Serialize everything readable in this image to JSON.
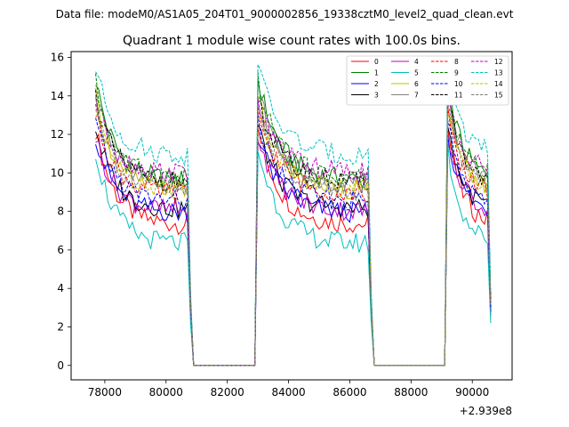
{
  "chart_data": {
    "type": "line",
    "suptitle": "Data file: modeM0/AS1A05_204T01_9000002856_19338cztM0_level2_quad_clean.evt",
    "title": "Quadrant 1 module wise count rates with 100.0s bins.",
    "xlabel": "",
    "ylabel": "",
    "x_offset_label": "+2.939e8",
    "xlim": [
      76900,
      91300
    ],
    "ylim": [
      -0.75,
      16.3
    ],
    "xticks": [
      78000,
      80000,
      82000,
      84000,
      86000,
      88000,
      90000
    ],
    "yticks": [
      0,
      2,
      4,
      6,
      8,
      10,
      12,
      14,
      16
    ],
    "x_start": 77700,
    "bin_seconds": 100,
    "segments": [
      {
        "start": 77700,
        "end": 80700,
        "decay": 0.165
      },
      {
        "start": 83000,
        "end": 86600,
        "decay": 0.14
      },
      {
        "start": 89200,
        "end": 90500,
        "decay": 0.22
      }
    ],
    "gaps": [
      {
        "from": 80900,
        "to": 82900
      },
      {
        "from": 86800,
        "to": 89100
      }
    ],
    "series": [
      {
        "name": "0",
        "color": "#ff0000",
        "dash": "solid",
        "peak": 12.3,
        "level": 7.3
      },
      {
        "name": "1",
        "color": "#008000",
        "dash": "solid",
        "peak": 14.9,
        "level": 9.6
      },
      {
        "name": "2",
        "color": "#0000ff",
        "dash": "solid",
        "peak": 12.0,
        "level": 7.9
      },
      {
        "name": "3",
        "color": "#000000",
        "dash": "solid",
        "peak": 12.4,
        "level": 8.1
      },
      {
        "name": "4",
        "color": "#bf00bf",
        "dash": "solid",
        "peak": 11.9,
        "level": 8.0
      },
      {
        "name": "5",
        "color": "#00bfbf",
        "dash": "solid",
        "peak": 11.2,
        "level": 6.3
      },
      {
        "name": "6",
        "color": "#bfbf00",
        "dash": "solid",
        "peak": 13.9,
        "level": 9.1
      },
      {
        "name": "7",
        "color": "#808080",
        "dash": "solid",
        "peak": 14.3,
        "level": 9.4
      },
      {
        "name": "8",
        "color": "#ff0000",
        "dash": "dashed",
        "peak": 13.1,
        "level": 8.9
      },
      {
        "name": "9",
        "color": "#008000",
        "dash": "dashed",
        "peak": 14.7,
        "level": 9.7
      },
      {
        "name": "10",
        "color": "#0000ff",
        "dash": "dashed",
        "peak": 12.6,
        "level": 8.5
      },
      {
        "name": "11",
        "color": "#000000",
        "dash": "dashed",
        "peak": 14.0,
        "level": 9.5
      },
      {
        "name": "12",
        "color": "#bf00bf",
        "dash": "dashed",
        "peak": 13.6,
        "level": 10.0
      },
      {
        "name": "13",
        "color": "#00bfbf",
        "dash": "dashed",
        "peak": 15.5,
        "level": 10.9
      },
      {
        "name": "14",
        "color": "#bfbf00",
        "dash": "dashed",
        "peak": 13.3,
        "level": 9.2
      },
      {
        "name": "15",
        "color": "#808080",
        "dash": "dashed",
        "peak": 13.9,
        "level": 9.0
      }
    ],
    "legend": {
      "placement": "top-right",
      "ncol": 4
    }
  }
}
